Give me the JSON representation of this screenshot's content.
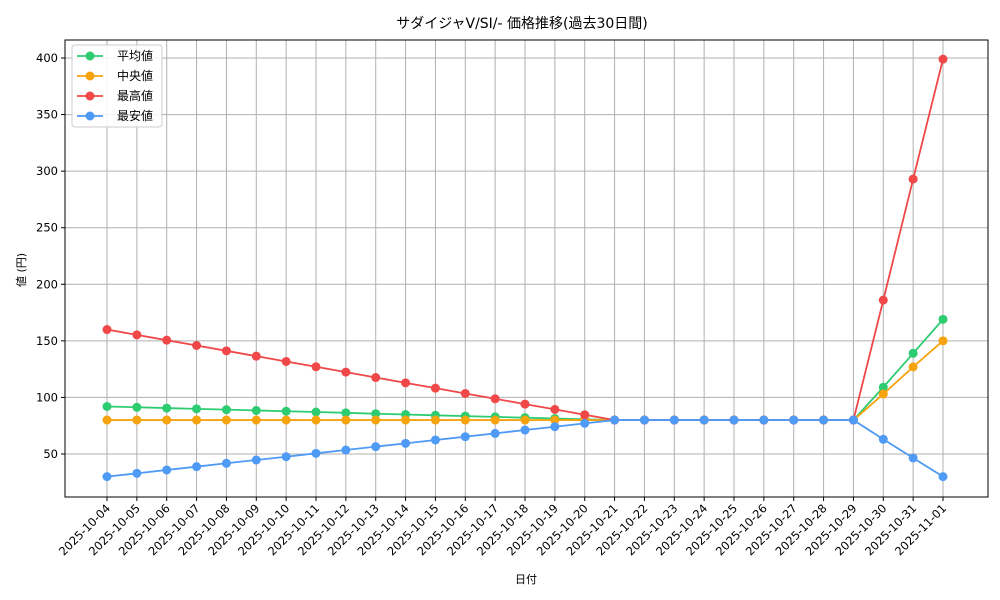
{
  "chart_data": {
    "type": "line",
    "title": "サダイジャV/SI/- 価格推移(過去30日間)",
    "xlabel": "日付",
    "ylabel": "値 (円)",
    "ylim": [
      15,
      418
    ],
    "yticks": [
      50,
      100,
      150,
      200,
      250,
      300,
      350,
      400
    ],
    "grid": true,
    "legend_position": "upper left",
    "categories": [
      "2025-10-04",
      "2025-10-05",
      "2025-10-06",
      "2025-10-07",
      "2025-10-08",
      "2025-10-09",
      "2025-10-10",
      "2025-10-11",
      "2025-10-12",
      "2025-10-13",
      "2025-10-14",
      "2025-10-15",
      "2025-10-16",
      "2025-10-17",
      "2025-10-18",
      "2025-10-19",
      "2025-10-20",
      "2025-10-21",
      "2025-10-22",
      "2025-10-23",
      "2025-10-24",
      "2025-10-25",
      "2025-10-26",
      "2025-10-27",
      "2025-10-28",
      "2025-10-29",
      "2025-10-30",
      "2025-10-31",
      "2025-11-01"
    ],
    "series": [
      {
        "name": "平均値",
        "color": "#2ecc71",
        "values": [
          92,
          91.3,
          90.6,
          89.9,
          89.2,
          88.5,
          87.8,
          87.1,
          86.4,
          85.6,
          84.9,
          84.2,
          83.5,
          82.8,
          82.1,
          81.4,
          80.7,
          80,
          80,
          80,
          80,
          80,
          80,
          80,
          80,
          80,
          109,
          139,
          169
        ]
      },
      {
        "name": "中央値",
        "color": "#f5a30f",
        "values": [
          80,
          80,
          80,
          80,
          80,
          80,
          80,
          80,
          80,
          80,
          80,
          80,
          80,
          80,
          80,
          80,
          80,
          80,
          80,
          80,
          80,
          80,
          80,
          80,
          80,
          80,
          103,
          127,
          150
        ]
      },
      {
        "name": "最高値",
        "color": "#f04848",
        "values": [
          160,
          155.3,
          150.6,
          145.9,
          141.2,
          136.5,
          131.8,
          127.1,
          122.4,
          117.6,
          112.9,
          108.2,
          103.5,
          98.8,
          94.1,
          89.4,
          84.7,
          80,
          80,
          80,
          80,
          80,
          80,
          80,
          80,
          80,
          186,
          293,
          399
        ]
      },
      {
        "name": "最安値",
        "color": "#4e9af5",
        "values": [
          30,
          32.9,
          35.9,
          38.8,
          41.8,
          44.7,
          47.6,
          50.6,
          53.5,
          56.5,
          59.4,
          62.4,
          65.3,
          68.2,
          71.2,
          74.1,
          77.1,
          80,
          80,
          80,
          80,
          80,
          80,
          80,
          80,
          80,
          63,
          46.5,
          30
        ]
      }
    ]
  }
}
